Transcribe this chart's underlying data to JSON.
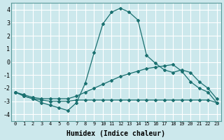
{
  "xlabel": "Humidex (Indice chaleur)",
  "background_color": "#cce8ec",
  "grid_color": "#ffffff",
  "line_color": "#1a7070",
  "xlim": [
    -0.5,
    23.5
  ],
  "ylim": [
    -4.5,
    4.5
  ],
  "xticks": [
    0,
    1,
    2,
    3,
    4,
    5,
    6,
    7,
    8,
    9,
    10,
    11,
    12,
    13,
    14,
    15,
    16,
    17,
    18,
    19,
    20,
    21,
    22,
    23
  ],
  "yticks": [
    -4,
    -3,
    -2,
    -1,
    0,
    1,
    2,
    3,
    4
  ],
  "curve1_x": [
    0,
    1,
    2,
    3,
    4,
    5,
    6,
    7,
    8,
    9,
    10,
    11,
    12,
    13,
    14,
    15,
    16,
    17,
    18,
    19,
    20,
    21,
    22,
    23
  ],
  "curve1_y": [
    -2.3,
    -2.6,
    -2.8,
    -3.1,
    -3.3,
    -3.5,
    -3.7,
    -3.1,
    -1.6,
    0.7,
    2.9,
    3.8,
    4.1,
    3.8,
    3.2,
    0.5,
    -0.1,
    -0.6,
    -0.8,
    -0.6,
    -0.8,
    -1.5,
    -2.0,
    -2.8
  ],
  "curve2_x": [
    0,
    1,
    2,
    3,
    4,
    5,
    6,
    7,
    8,
    9,
    10,
    11,
    12,
    13,
    14,
    15,
    16,
    17,
    18,
    19,
    20,
    21,
    22,
    23
  ],
  "curve2_y": [
    -2.3,
    -2.5,
    -2.7,
    -2.8,
    -2.8,
    -2.8,
    -2.8,
    -2.6,
    -2.3,
    -2.0,
    -1.7,
    -1.4,
    -1.1,
    -0.9,
    -0.7,
    -0.5,
    -0.4,
    -0.3,
    -0.2,
    -0.7,
    -1.5,
    -2.0,
    -2.3,
    -3.1
  ],
  "curve3_x": [
    0,
    1,
    2,
    3,
    4,
    5,
    6,
    7,
    8,
    9,
    10,
    11,
    12,
    13,
    14,
    15,
    16,
    17,
    18,
    19,
    20,
    21,
    22,
    23
  ],
  "curve3_y": [
    -2.3,
    -2.6,
    -2.8,
    -2.9,
    -3.0,
    -3.0,
    -3.0,
    -2.9,
    -2.9,
    -2.9,
    -2.9,
    -2.9,
    -2.9,
    -2.9,
    -2.9,
    -2.9,
    -2.9,
    -2.9,
    -2.9,
    -2.9,
    -2.9,
    -2.9,
    -2.9,
    -3.1
  ]
}
